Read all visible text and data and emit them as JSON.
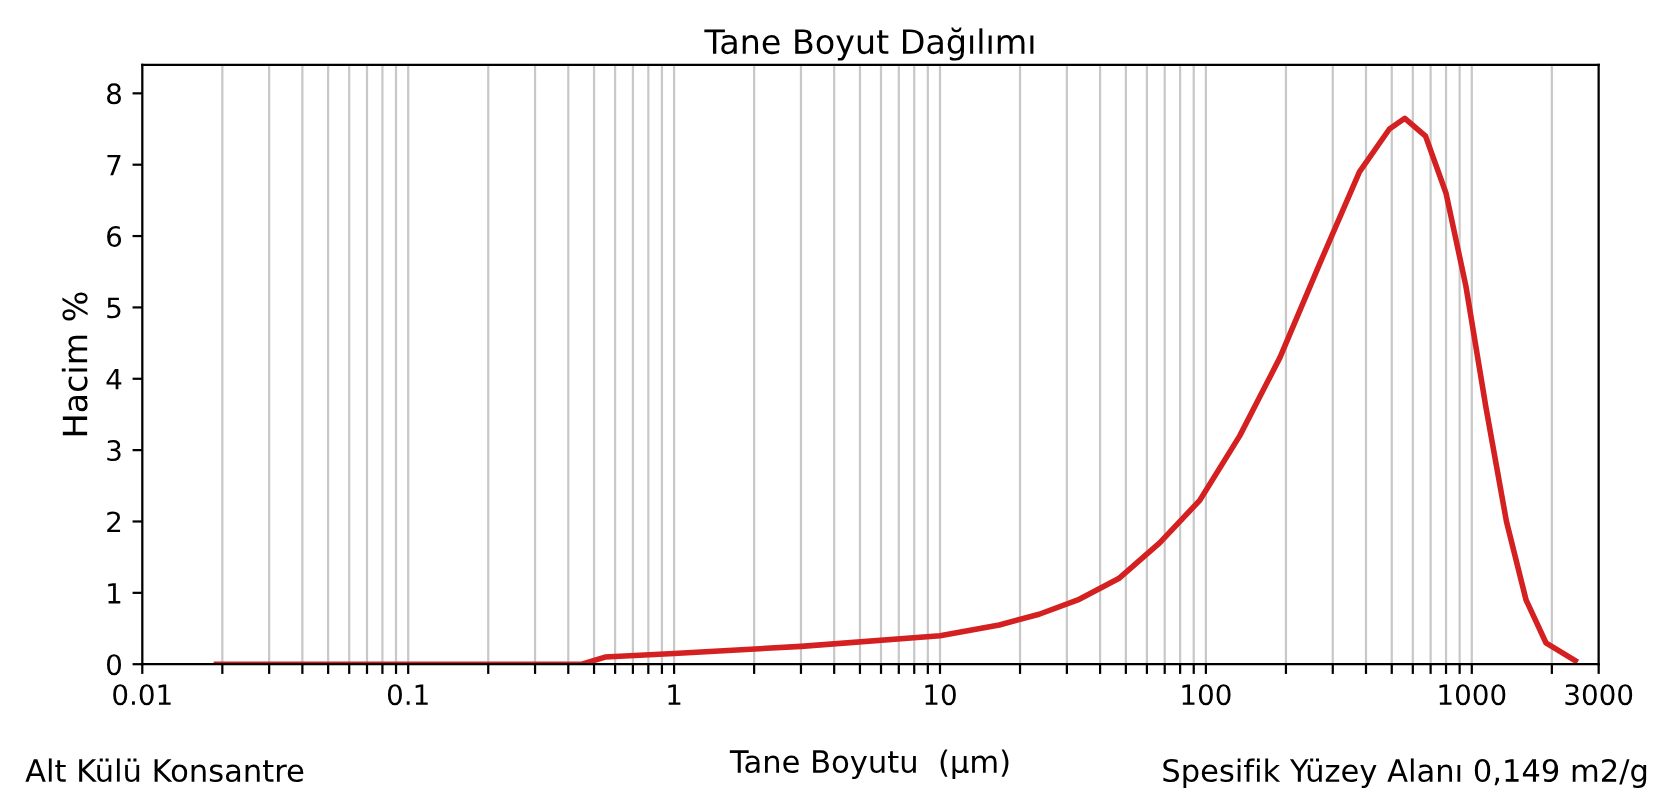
{
  "chart_data": {
    "type": "line",
    "title": "Tane Boyut Dağılımı",
    "xlabel": "Tane Boyutu  (µm)",
    "ylabel": "Hacim %",
    "annotations": [
      "Alt Külü Konsantre",
      "Spesifik Yüzey Alanı 0,149 m2/g"
    ],
    "log": "x",
    "grid": "x",
    "legend": false,
    "marker": "none",
    "line_style": "solid",
    "xlim": [
      0.01,
      3000
    ],
    "ylim": [
      0,
      8.4
    ],
    "xticks": [
      0.01,
      {
        "value": 0.02,
        "label": null
      },
      {
        "value": 0.03,
        "label": null
      },
      {
        "value": 0.04,
        "label": null
      },
      {
        "value": 0.05,
        "label": null
      },
      {
        "value": 0.06,
        "label": null
      },
      {
        "value": 0.07,
        "label": null
      },
      {
        "value": 0.08,
        "label": null
      },
      {
        "value": 0.09,
        "label": null
      },
      0.1,
      {
        "value": 0.2,
        "label": null
      },
      {
        "value": 0.3,
        "label": null
      },
      {
        "value": 0.4,
        "label": null
      },
      {
        "value": 0.5,
        "label": null
      },
      {
        "value": 0.6,
        "label": null
      },
      {
        "value": 0.7,
        "label": null
      },
      {
        "value": 0.8,
        "label": null
      },
      {
        "value": 0.9,
        "label": null
      },
      1,
      {
        "value": 2,
        "label": null
      },
      {
        "value": 3,
        "label": null
      },
      {
        "value": 4,
        "label": null
      },
      {
        "value": 5,
        "label": null
      },
      {
        "value": 6,
        "label": null
      },
      {
        "value": 7,
        "label": null
      },
      {
        "value": 8,
        "label": null
      },
      {
        "value": 9,
        "label": null
      },
      10,
      {
        "value": 20,
        "label": null
      },
      {
        "value": 30,
        "label": null
      },
      {
        "value": 40,
        "label": null
      },
      {
        "value": 50,
        "label": null
      },
      {
        "value": 60,
        "label": null
      },
      {
        "value": 70,
        "label": null
      },
      {
        "value": 80,
        "label": null
      },
      {
        "value": 90,
        "label": null
      },
      100,
      {
        "value": 200,
        "label": null
      },
      {
        "value": 300,
        "label": null
      },
      {
        "value": 400,
        "label": null
      },
      {
        "value": 500,
        "label": null
      },
      {
        "value": 600,
        "label": null
      },
      {
        "value": 700,
        "label": null
      },
      {
        "value": 800,
        "label": null
      },
      {
        "value": 900,
        "label": null
      },
      1000,
      {
        "value": 2000,
        "label": null
      },
      3000
    ],
    "yticks": [
      0,
      1,
      2,
      3,
      4,
      5,
      6,
      7,
      8
    ],
    "series": [
      {
        "color": "#d42020",
        "x": [
          0.019,
          0.45,
          0.55,
          1,
          3,
          10,
          16.7,
          23.6,
          33,
          47,
          67,
          95,
          134,
          190,
          267,
          378,
          490,
          560,
          670,
          800,
          950,
          1130,
          1350,
          1600,
          1900,
          2450
        ],
        "values": [
          0,
          0,
          0.1,
          0.15,
          0.25,
          0.4,
          0.55,
          0.7,
          0.9,
          1.2,
          1.7,
          2.3,
          3.2,
          4.3,
          5.6,
          6.9,
          7.5,
          7.65,
          7.4,
          6.6,
          5.3,
          3.6,
          2.0,
          0.9,
          0.3,
          0.05
        ]
      }
    ]
  }
}
